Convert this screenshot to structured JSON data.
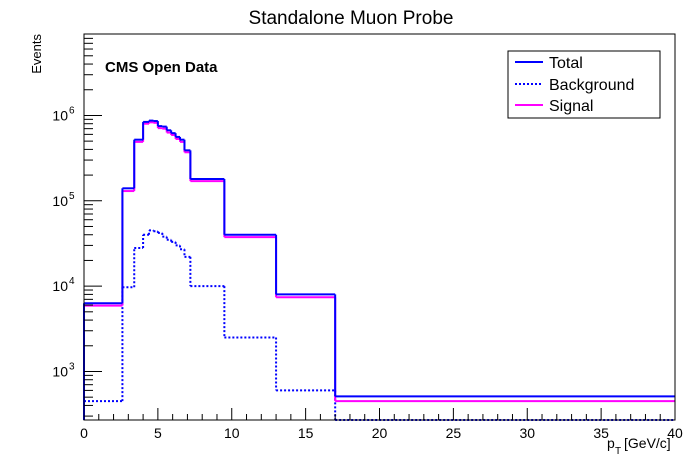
{
  "chart_data": {
    "type": "line",
    "title": "Standalone Muon Probe",
    "annotation": "CMS Open Data",
    "xlabel_main": "p",
    "xlabel_sub": "T",
    "xlabel_unit": "[GeV/c]",
    "ylabel": "Events",
    "xlim": [
      0,
      40
    ],
    "ylim": [
      270,
      9000000
    ],
    "yscale": "log",
    "x_ticks": [
      "0",
      "5",
      "10",
      "15",
      "20",
      "25",
      "30",
      "35",
      "40"
    ],
    "y_ticks": [
      {
        "base": "10",
        "exp": "3",
        "value": 1000
      },
      {
        "base": "10",
        "exp": "4",
        "value": 10000
      },
      {
        "base": "10",
        "exp": "5",
        "value": 100000
      },
      {
        "base": "10",
        "exp": "6",
        "value": 1000000
      }
    ],
    "legend_position": "top-right",
    "bin_edges": [
      0,
      2.6,
      3.4,
      4.0,
      4.4,
      4.7,
      5.0,
      5.3,
      5.6,
      5.9,
      6.2,
      6.5,
      6.8,
      7.2,
      9.5,
      13.0,
      17.0,
      40.0
    ],
    "series": [
      {
        "name": "Total",
        "color": "#0000ff",
        "style": "solid",
        "values": [
          6300,
          140000,
          520000,
          840000,
          870000,
          860000,
          750000,
          740000,
          670000,
          620000,
          560000,
          520000,
          390000,
          180000,
          40000,
          8000,
          510
        ]
      },
      {
        "name": "Background",
        "color": "#0000ff",
        "style": "dotted",
        "values": [
          450,
          9700,
          28000,
          40000,
          45000,
          44000,
          42000,
          38000,
          35000,
          33000,
          30000,
          27000,
          22000,
          10000,
          2500,
          600,
          260
        ]
      },
      {
        "name": "Signal",
        "color": "#ff00ff",
        "style": "solid",
        "values": [
          5900,
          130000,
          490000,
          800000,
          830000,
          820000,
          710000,
          700000,
          630000,
          590000,
          530000,
          490000,
          370000,
          170000,
          37500,
          7400,
          450
        ]
      }
    ]
  }
}
